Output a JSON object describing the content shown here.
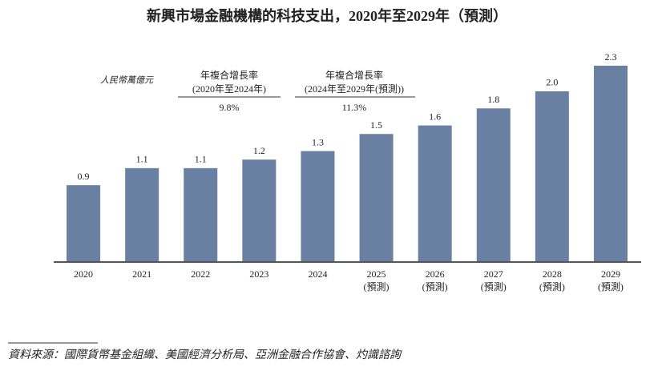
{
  "chart_data": {
    "type": "bar",
    "title": "新興市場金融機構的科技支出，2020年至2029年（預測）",
    "unit_label": "人民幣萬億元",
    "categories": [
      "2020",
      "2021",
      "2022",
      "2023",
      "2024",
      "2025",
      "2026",
      "2027",
      "2028",
      "2029"
    ],
    "category_sublabels": [
      null,
      null,
      null,
      null,
      null,
      "(預測)",
      "(預測)",
      "(預測)",
      "(預測)",
      "(預測)"
    ],
    "values": [
      0.9,
      1.1,
      1.1,
      1.2,
      1.3,
      1.5,
      1.6,
      1.8,
      2.0,
      2.3
    ],
    "value_labels": [
      "0.9",
      "1.1",
      "1.1",
      "1.2",
      "1.3",
      "1.5",
      "1.6",
      "1.8",
      "2.0",
      "2.3"
    ],
    "color": "#6a80a3",
    "annotations": [
      {
        "title": "年複合增長率",
        "period": "(2020年至2024年)",
        "value": "9.8%"
      },
      {
        "title": "年複合增長率",
        "period": "(2024年至2029年(預測))",
        "value": "11.3%"
      }
    ],
    "source": "資料來源：國際貨幣基金組織、美國經濟分析局、亞洲金融合作協會、灼識諮詢"
  }
}
